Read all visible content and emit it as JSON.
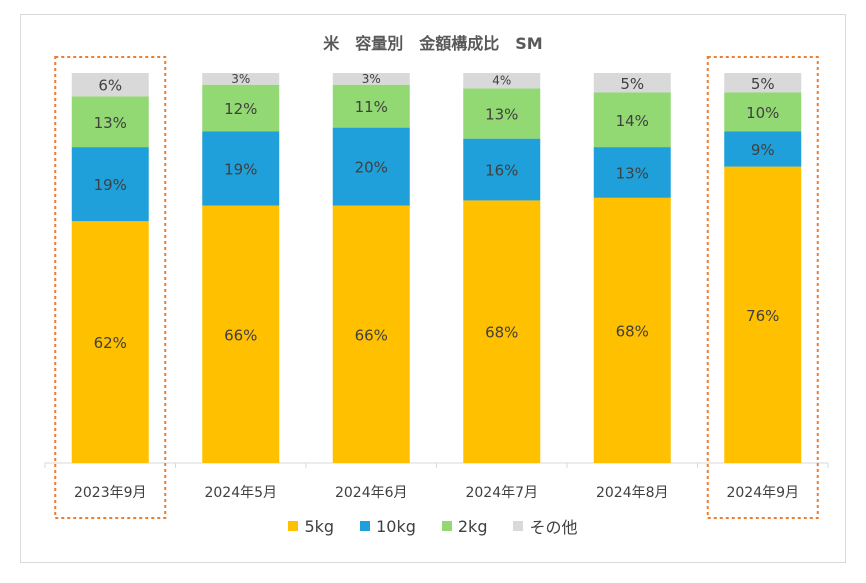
{
  "chart_data": {
    "type": "bar",
    "stacked": true,
    "percent": true,
    "title": "米　容量別　金額構成比　SM",
    "categories": [
      "2023年9月",
      "2024年5月",
      "2024年6月",
      "2024年7月",
      "2024年8月",
      "2024年9月"
    ],
    "series": [
      {
        "name": "5kg",
        "color": "#FFC000",
        "values": [
          62,
          66,
          66,
          68,
          68,
          76
        ]
      },
      {
        "name": "10kg",
        "color": "#1FA0DA",
        "values": [
          19,
          19,
          20,
          16,
          13,
          9
        ]
      },
      {
        "name": "2kg",
        "color": "#92D973",
        "values": [
          13,
          12,
          11,
          13,
          14,
          10
        ]
      },
      {
        "name": "その他",
        "color": "#D9D9D9",
        "values": [
          6,
          3,
          3,
          4,
          5,
          5
        ]
      }
    ],
    "highlighted_categories": [
      "2023年9月",
      "2024年9月"
    ],
    "highlight_color": "#ED7D31",
    "legend_position": "bottom",
    "grid": false
  }
}
